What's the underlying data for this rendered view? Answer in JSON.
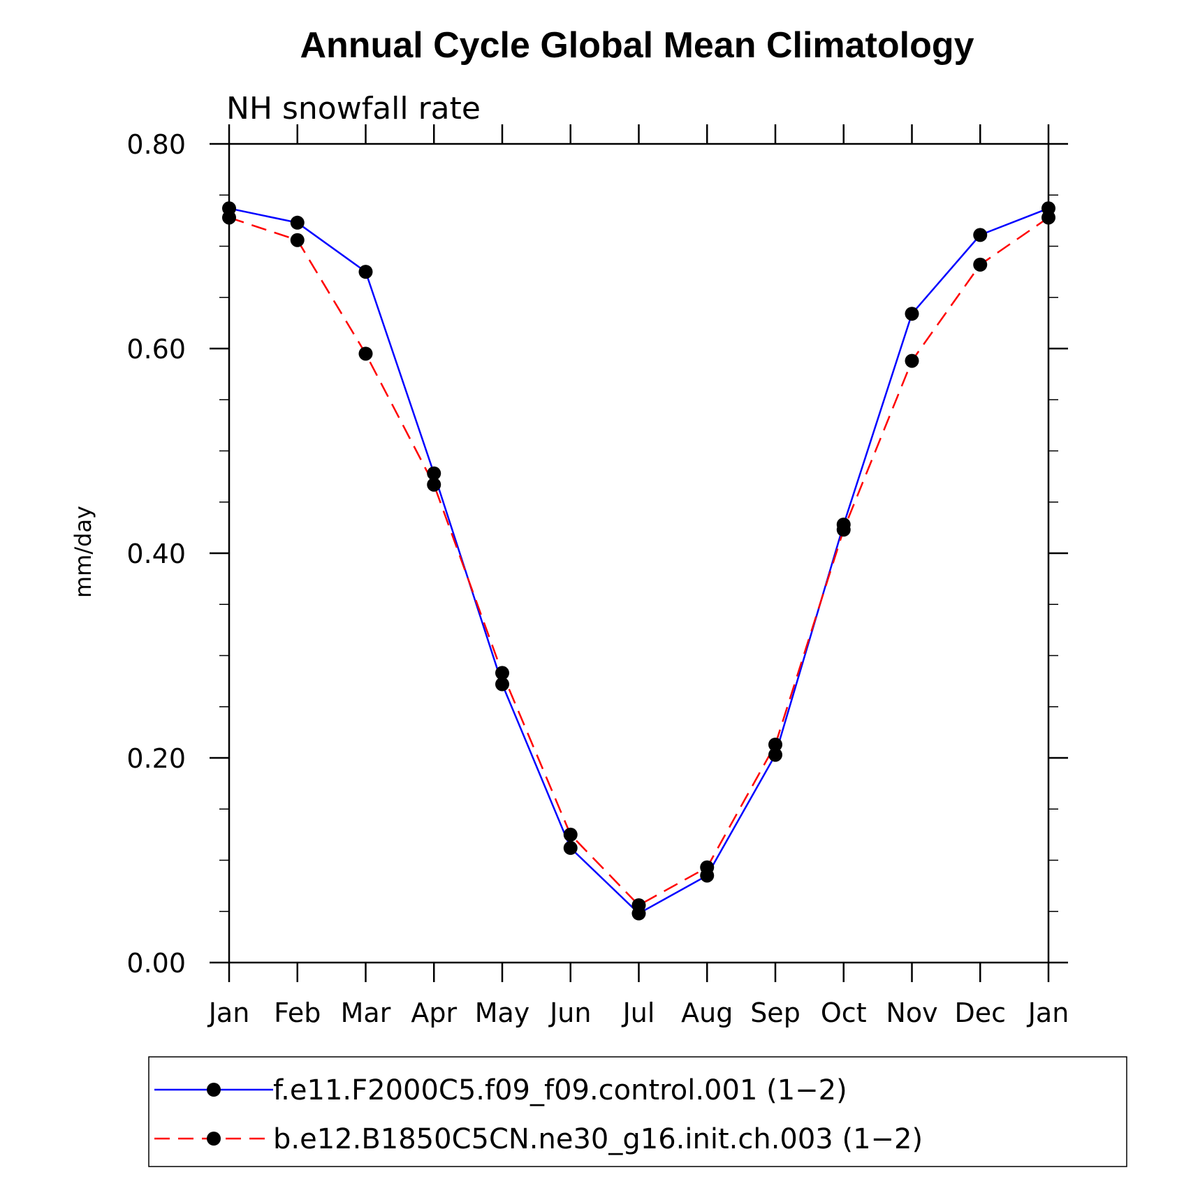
{
  "chart_data": {
    "type": "line",
    "title": "Annual Cycle Global Mean Climatology",
    "subtitle": "NH snowfall rate",
    "ylabel": "mm/day",
    "xlabel": "",
    "categories": [
      "Jan",
      "Feb",
      "Mar",
      "Apr",
      "May",
      "Jun",
      "Jul",
      "Aug",
      "Sep",
      "Oct",
      "Nov",
      "Dec",
      "Jan"
    ],
    "ylim": [
      0.0,
      0.8
    ],
    "yticks": [
      "0.00",
      "0.20",
      "0.40",
      "0.60",
      "0.80"
    ],
    "legend_position": "bottom",
    "series": [
      {
        "name": "f.e11.F2000C5.f09_f09.control.001 (1−2)",
        "color": "#0000ff",
        "dash": "solid",
        "marker": "filled-circle",
        "values": [
          0.737,
          0.723,
          0.675,
          0.478,
          0.272,
          0.112,
          0.048,
          0.085,
          0.203,
          0.428,
          0.634,
          0.711,
          0.737
        ]
      },
      {
        "name": "b.e12.B1850C5CN.ne30_g16.init.ch.003 (1−2)",
        "color": "#ff0000",
        "dash": "dashed",
        "marker": "filled-circle",
        "values": [
          0.728,
          0.706,
          0.595,
          0.467,
          0.283,
          0.125,
          0.056,
          0.093,
          0.213,
          0.423,
          0.588,
          0.682,
          0.728
        ]
      }
    ],
    "marker_color": "#000000"
  }
}
